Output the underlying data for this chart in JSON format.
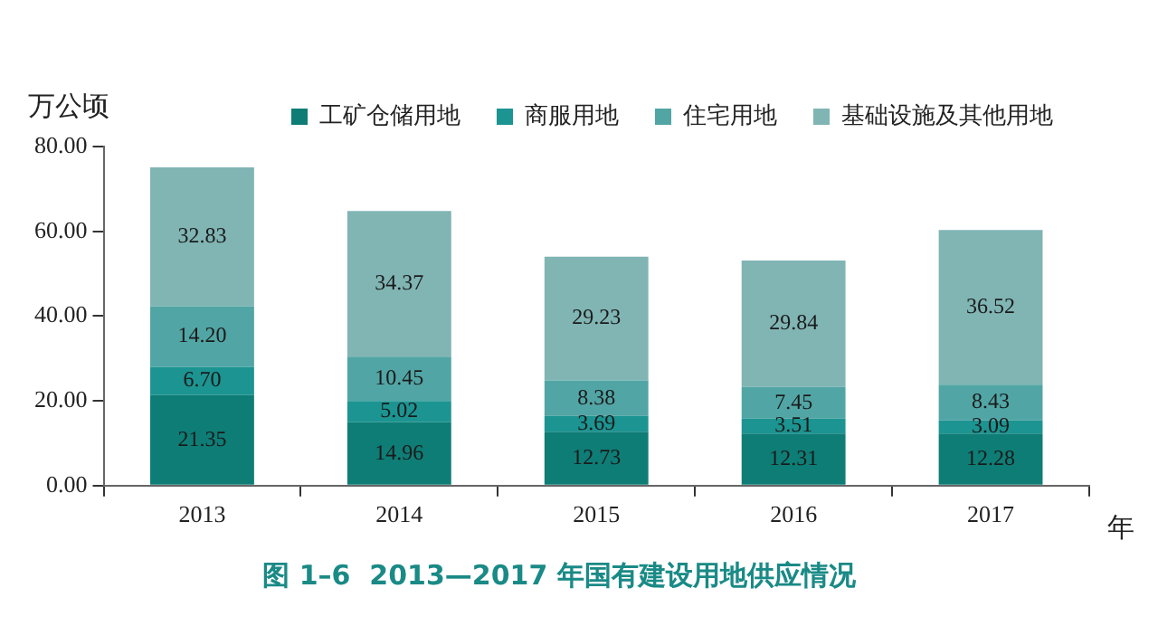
{
  "chart_data": {
    "type": "bar",
    "title": "图 1–6  2013—2017 年国有建设用地供应情况",
    "ylabel": "万公顷",
    "xlabel": "年",
    "categories": [
      "2013",
      "2014",
      "2015",
      "2016",
      "2017"
    ],
    "stacked": true,
    "series": [
      {
        "name": "工矿仓储用地",
        "color": "#0e7d76",
        "values": [
          21.35,
          14.96,
          12.73,
          12.31,
          12.28
        ],
        "value_labels": [
          "21.35",
          "14.96",
          "12.73",
          "12.31",
          "12.28"
        ]
      },
      {
        "name": "商服用地",
        "color": "#1c9491",
        "values": [
          6.7,
          5.02,
          3.69,
          3.51,
          3.09
        ],
        "value_labels": [
          "6.70",
          "5.02",
          "3.69",
          "3.51",
          "3.09"
        ]
      },
      {
        "name": "住宅用地",
        "color": "#52a5a5",
        "values": [
          14.2,
          10.45,
          8.38,
          7.45,
          8.43
        ],
        "value_labels": [
          "14.20",
          "10.45",
          "8.38",
          "7.45",
          "8.43"
        ]
      },
      {
        "name": "基础设施及其他用地",
        "color": "#80b5b4",
        "values": [
          32.83,
          34.37,
          29.23,
          29.84,
          36.52
        ],
        "value_labels": [
          "32.83",
          "34.37",
          "29.23",
          "29.84",
          "36.52"
        ]
      }
    ],
    "ylim": [
      0,
      80
    ],
    "yticks": [
      {
        "value": 0,
        "label": "0.00"
      },
      {
        "value": 20,
        "label": "20.00"
      },
      {
        "value": 40,
        "label": "40.00"
      },
      {
        "value": 60,
        "label": "60.00"
      },
      {
        "value": 80,
        "label": "80.00"
      }
    ],
    "grid": false,
    "legend": "top"
  }
}
